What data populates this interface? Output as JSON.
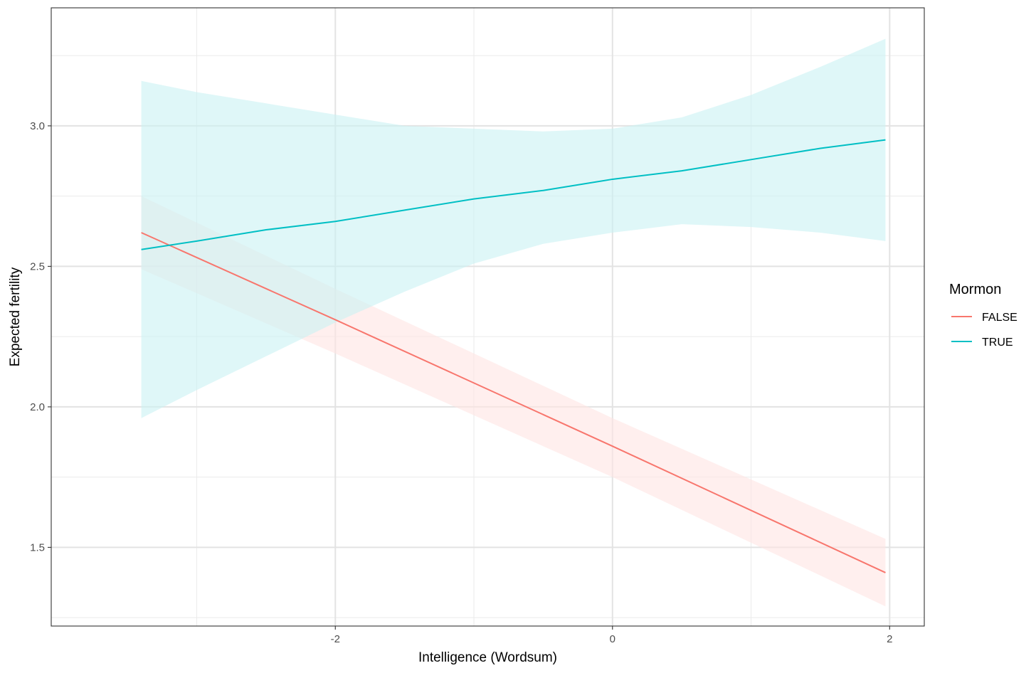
{
  "chart_data": {
    "type": "line",
    "xlabel": "Intelligence (Wordsum)",
    "ylabel": "Expected fertility",
    "xlim": [
      -4.05,
      2.25
    ],
    "ylim": [
      1.22,
      3.42
    ],
    "x_ticks": [
      {
        "value": -2,
        "label": "-2"
      },
      {
        "value": 0,
        "label": "0"
      },
      {
        "value": 2,
        "label": "2"
      }
    ],
    "x_minor_ticks": [
      -3,
      -1,
      1
    ],
    "y_ticks": [
      {
        "value": 1.5,
        "label": "1.5"
      },
      {
        "value": 2.0,
        "label": "2.0"
      },
      {
        "value": 2.5,
        "label": "2.5"
      },
      {
        "value": 3.0,
        "label": "3.0"
      }
    ],
    "y_minor_ticks": [
      1.25,
      1.75,
      2.25,
      2.75,
      3.25
    ],
    "grid": true,
    "legend": {
      "title": "Mormon",
      "position": "right"
    },
    "series": [
      {
        "name": "FALSE",
        "color": "#F8766D",
        "band_color": "#FFE4E2",
        "x": [
          -3.4,
          -2.0,
          0.0,
          1.97
        ],
        "y": [
          2.62,
          2.31,
          1.86,
          1.41
        ],
        "lower": [
          2.49,
          2.19,
          1.75,
          1.29
        ],
        "upper": [
          2.75,
          2.42,
          1.96,
          1.53
        ]
      },
      {
        "name": "TRUE",
        "color": "#00BFC4",
        "band_color": "#C9F2F3",
        "x": [
          -3.4,
          -3.0,
          -2.5,
          -2.0,
          -1.5,
          -1.0,
          -0.5,
          0.0,
          0.5,
          1.0,
          1.5,
          1.97
        ],
        "y": [
          2.56,
          2.59,
          2.63,
          2.66,
          2.7,
          2.74,
          2.77,
          2.81,
          2.84,
          2.88,
          2.92,
          2.95
        ],
        "lower": [
          1.96,
          2.06,
          2.18,
          2.3,
          2.41,
          2.51,
          2.58,
          2.62,
          2.65,
          2.64,
          2.62,
          2.59
        ],
        "upper": [
          3.16,
          3.12,
          3.08,
          3.04,
          3.0,
          2.99,
          2.98,
          2.99,
          3.03,
          3.11,
          3.21,
          3.31
        ]
      }
    ]
  }
}
